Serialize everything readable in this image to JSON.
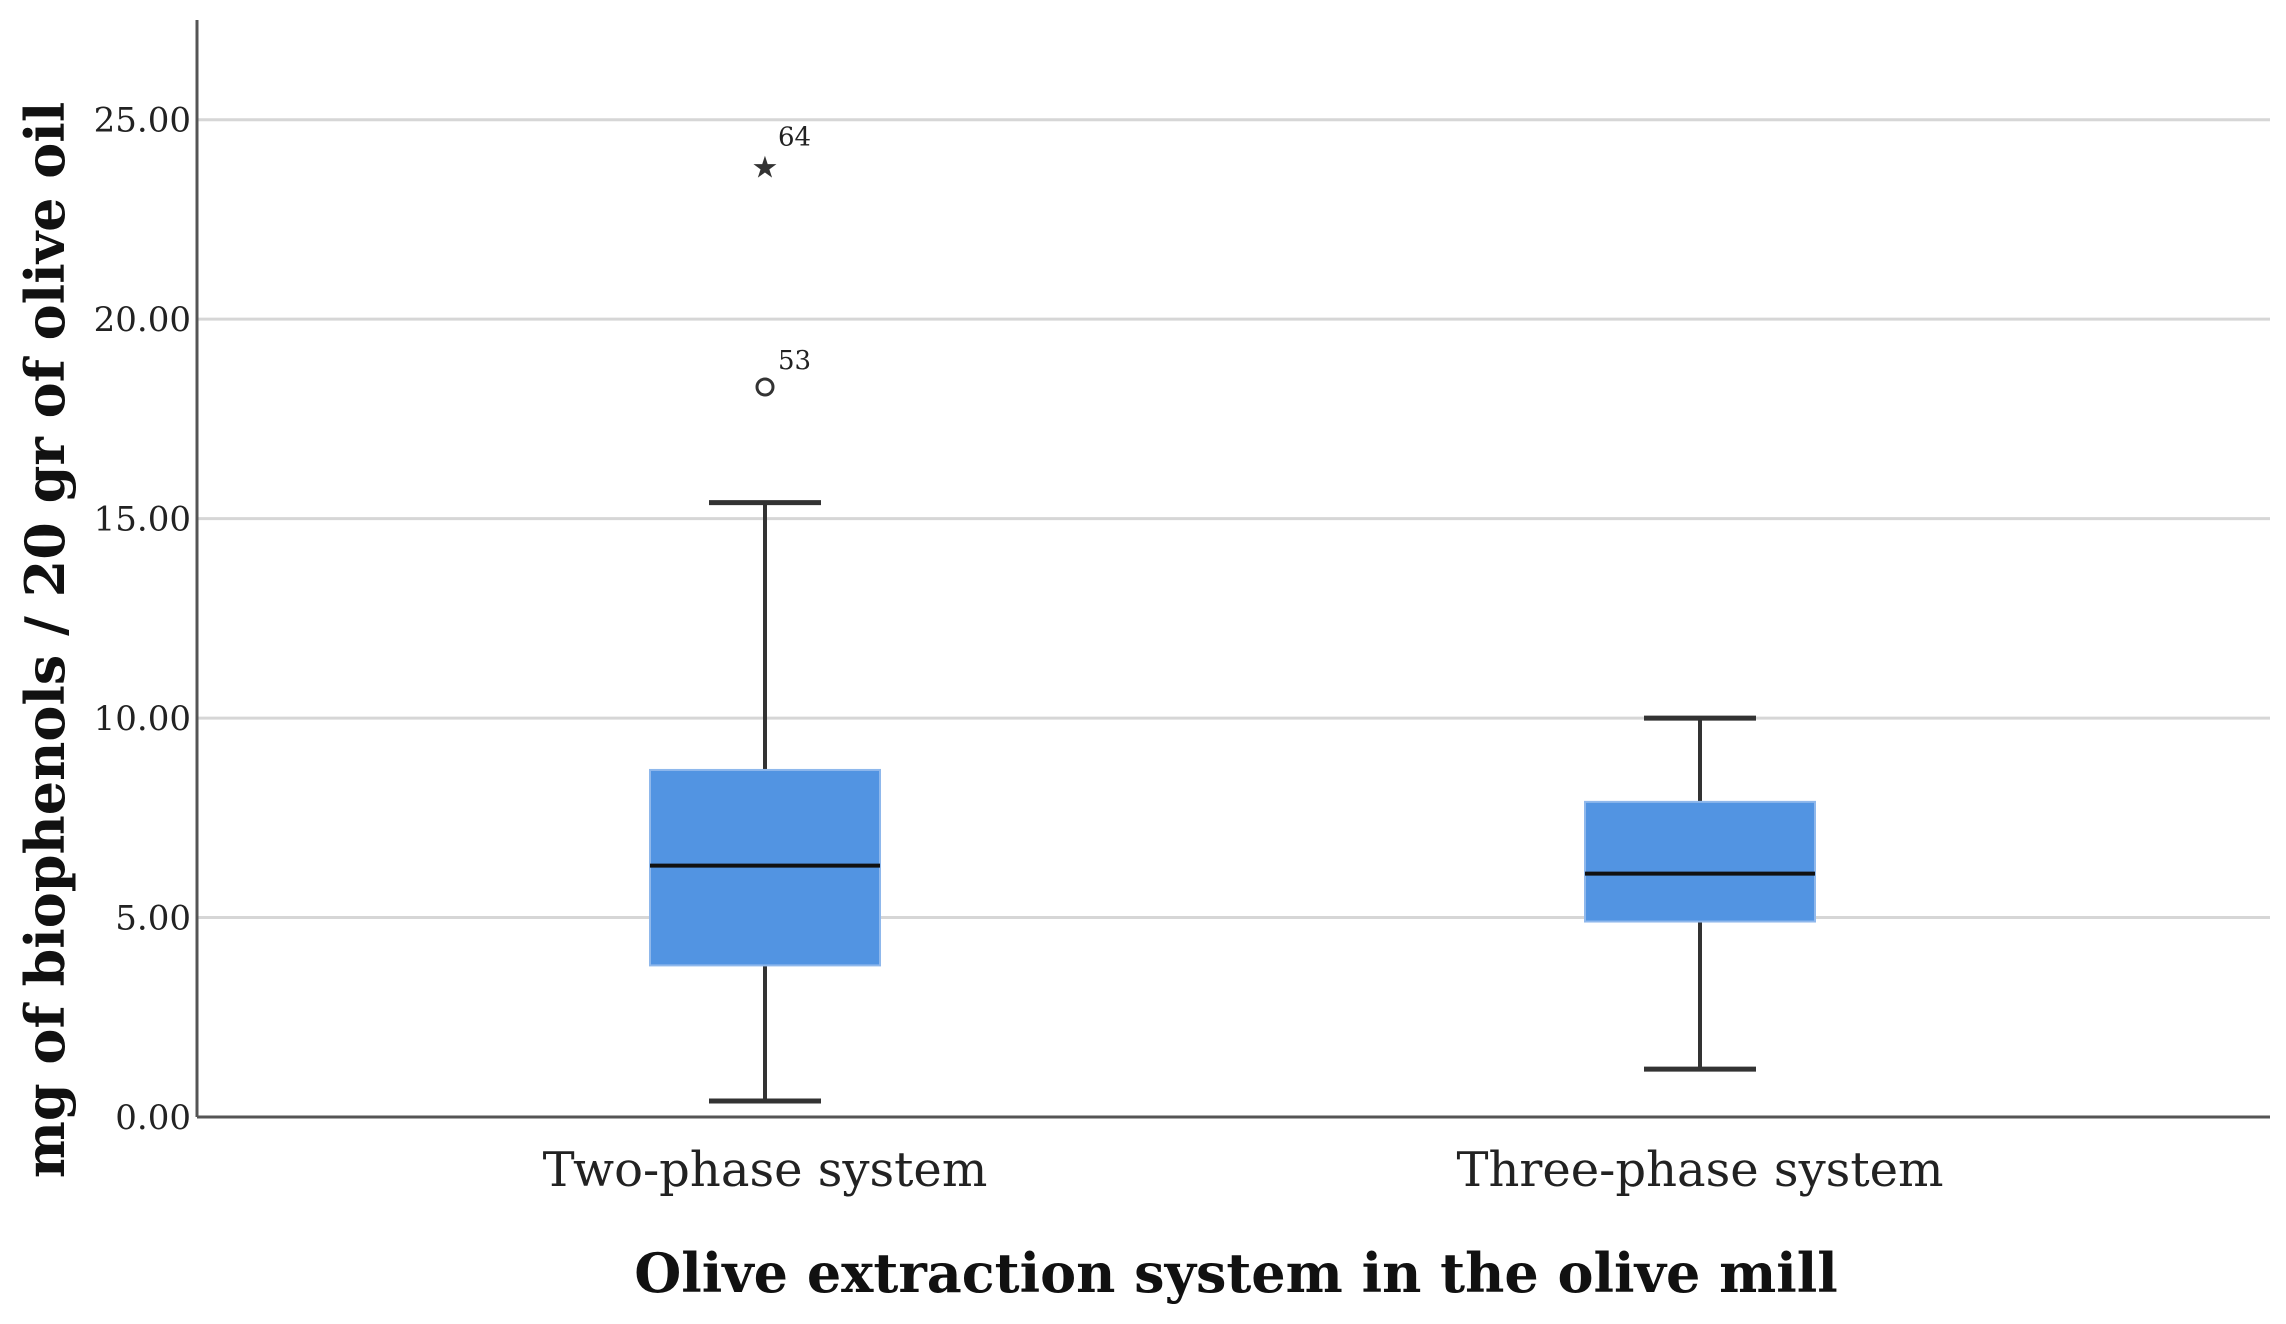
{
  "chart_data": {
    "type": "boxplot",
    "xlabel": "Olive extraction system in the olive mill",
    "ylabel": "mg of biophenols / 20 gr of olive oil",
    "ylim": [
      0,
      27.5
    ],
    "yticks": [
      0,
      5,
      10,
      15,
      20,
      25
    ],
    "ytick_labels": [
      "0.00",
      "5.00",
      "10.00",
      "15.00",
      "20.00",
      "25.00"
    ],
    "grid": "horizontal",
    "box_color": "#5294e2",
    "categories": [
      "Two-phase system",
      "Three-phase system"
    ],
    "boxes": [
      {
        "category": "Two-phase system",
        "whisker_low": 0.4,
        "q1": 3.8,
        "median": 6.3,
        "q3": 8.7,
        "whisker_high": 15.4,
        "outliers": [
          {
            "value": 18.3,
            "label": "53",
            "marker": "circle"
          },
          {
            "value": 23.9,
            "label": "64",
            "marker": "star"
          }
        ]
      },
      {
        "category": "Three-phase system",
        "whisker_low": 1.2,
        "q1": 4.9,
        "median": 6.1,
        "q3": 7.9,
        "whisker_high": 10.0,
        "outliers": []
      }
    ]
  }
}
